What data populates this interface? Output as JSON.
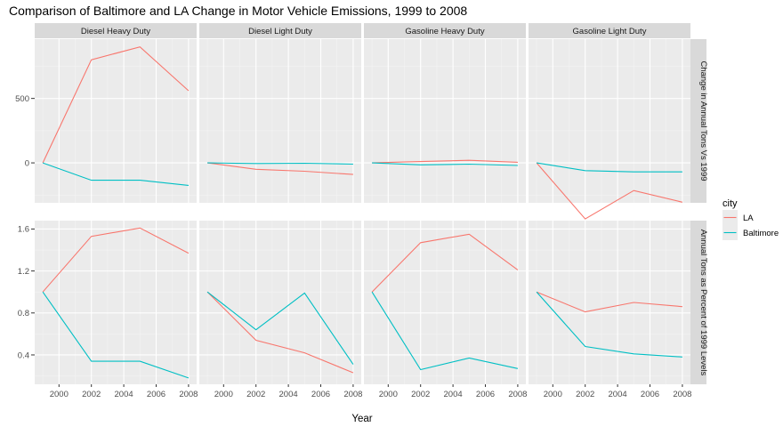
{
  "chart_data": {
    "type": "line",
    "title": "Comparison of Baltimore and LA Change in Motor Vehicle Emissions, 1999 to 2008",
    "xlabel": "Year",
    "x": [
      1999,
      2002,
      2005,
      2008
    ],
    "xticks": [
      2000,
      2002,
      2004,
      2006,
      2008
    ],
    "xlim": [
      1998.5,
      2008.5
    ],
    "columns": [
      "Diesel Heavy Duty",
      "Diesel Light Duty",
      "Gasoline Heavy Duty",
      "Gasoline Light Duty"
    ],
    "rows": [
      {
        "label": "Change in Annual Tons Vs 1999",
        "ylim": [
          -310,
          960
        ],
        "yticks": [
          0,
          500
        ],
        "tick_labels": [
          "0",
          "500"
        ]
      },
      {
        "label": "Annual Tons as Percent of 1999 Levels",
        "ylim": [
          0.12,
          1.68
        ],
        "yticks": [
          0.4,
          0.8,
          1.2,
          1.6
        ],
        "tick_labels": [
          "0.4",
          "0.8",
          "1.2",
          "1.6"
        ]
      }
    ],
    "legend": {
      "title": "city",
      "position": "right",
      "entries": [
        {
          "name": "LA",
          "color": "#F8766D"
        },
        {
          "name": "Baltimore",
          "color": "#00BFC4"
        }
      ]
    },
    "panels": [
      {
        "row": 0,
        "col": 0,
        "series": [
          {
            "name": "LA",
            "values": [
              0,
              800,
              900,
              560
            ]
          },
          {
            "name": "Baltimore",
            "values": [
              0,
              -135,
              -135,
              -175
            ]
          }
        ]
      },
      {
        "row": 0,
        "col": 1,
        "series": [
          {
            "name": "LA",
            "values": [
              0,
              -50,
              -65,
              -90
            ]
          },
          {
            "name": "Baltimore",
            "values": [
              0,
              -5,
              -3,
              -10
            ]
          }
        ]
      },
      {
        "row": 0,
        "col": 2,
        "series": [
          {
            "name": "LA",
            "values": [
              0,
              10,
              20,
              5
            ]
          },
          {
            "name": "Baltimore",
            "values": [
              0,
              -15,
              -10,
              -20
            ]
          }
        ]
      },
      {
        "row": 0,
        "col": 3,
        "series": [
          {
            "name": "LA",
            "values": [
              0,
              -435,
              -215,
              -305
            ]
          },
          {
            "name": "Baltimore",
            "values": [
              0,
              -60,
              -70,
              -70
            ]
          }
        ]
      },
      {
        "row": 1,
        "col": 0,
        "series": [
          {
            "name": "LA",
            "values": [
              1.0,
              1.53,
              1.61,
              1.37
            ]
          },
          {
            "name": "Baltimore",
            "values": [
              1.0,
              0.34,
              0.34,
              0.18
            ]
          }
        ]
      },
      {
        "row": 1,
        "col": 1,
        "series": [
          {
            "name": "LA",
            "values": [
              1.0,
              0.54,
              0.42,
              0.23
            ]
          },
          {
            "name": "Baltimore",
            "values": [
              1.0,
              0.64,
              0.99,
              0.31
            ]
          }
        ]
      },
      {
        "row": 1,
        "col": 2,
        "series": [
          {
            "name": "LA",
            "values": [
              1.0,
              1.47,
              1.55,
              1.21
            ]
          },
          {
            "name": "Baltimore",
            "values": [
              1.0,
              0.26,
              0.37,
              0.27
            ]
          }
        ]
      },
      {
        "row": 1,
        "col": 3,
        "series": [
          {
            "name": "LA",
            "values": [
              1.0,
              0.81,
              0.9,
              0.86
            ]
          },
          {
            "name": "Baltimore",
            "values": [
              1.0,
              0.48,
              0.41,
              0.38
            ]
          }
        ]
      }
    ],
    "grid": true
  }
}
